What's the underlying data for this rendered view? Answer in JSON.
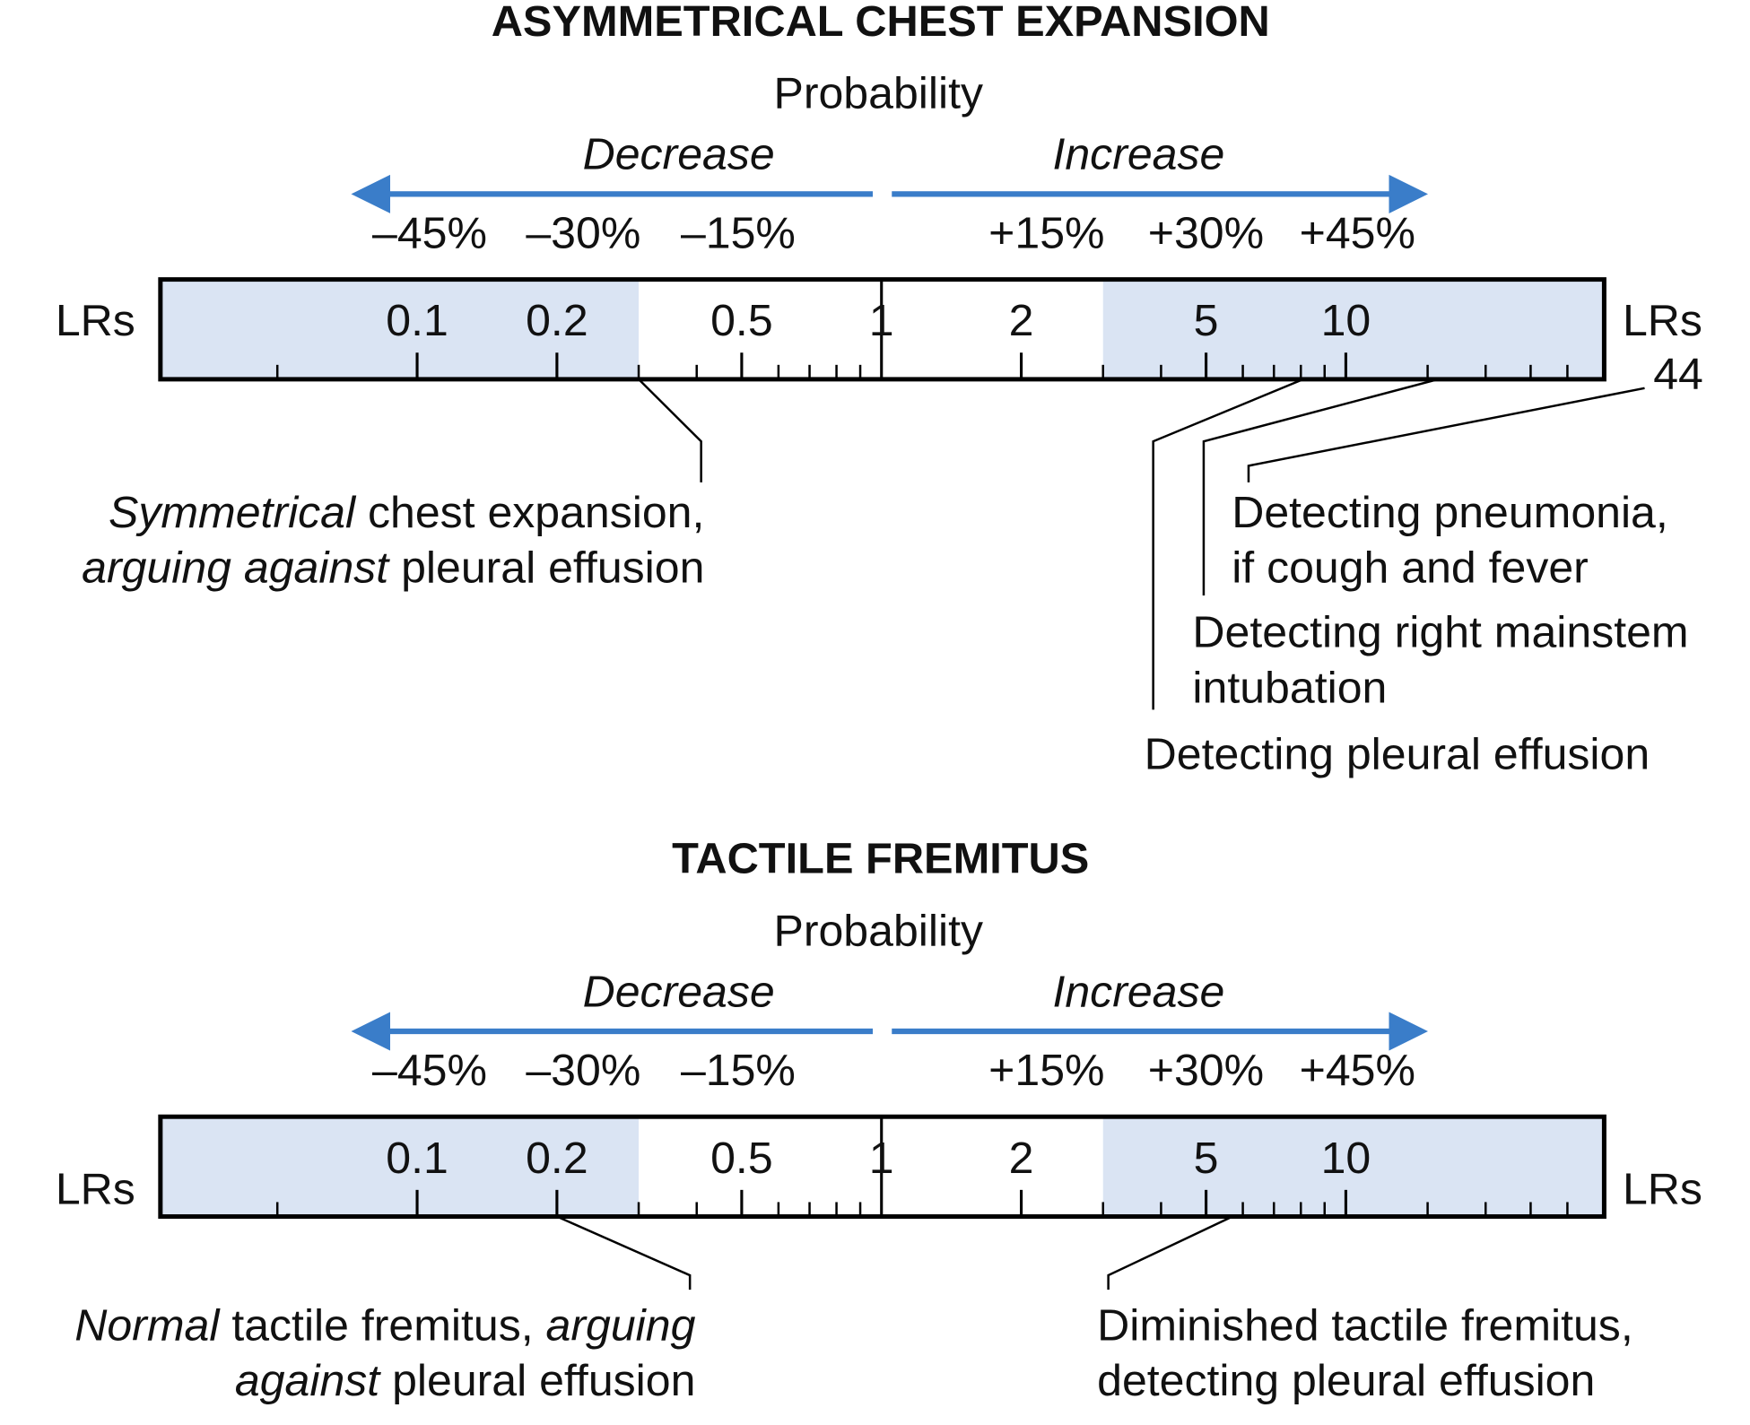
{
  "panels": [
    {
      "title": "ASYMMETRICAL CHEST EXPANSION",
      "probability": "Probability",
      "decrease": "Decrease",
      "increase": "Increase",
      "percent_labels": [
        "–45%",
        "–30%",
        "–15%",
        "+15%",
        "+30%",
        "+45%"
      ],
      "axis_label": "LRs",
      "scale": {
        "log": true,
        "xlim": [
          0.028,
          36
        ],
        "xticks": [
          0.1,
          0.2,
          0.5,
          1,
          2,
          5,
          10
        ],
        "xminor": [
          0.05,
          0.3,
          0.4,
          0.6,
          0.7,
          0.8,
          0.9,
          3,
          4,
          6,
          7,
          8,
          9,
          15,
          20,
          25,
          30
        ],
        "shade_below": 0.3,
        "shade_above": 3,
        "shade_color": "#dae4f3"
      },
      "findings": [
        {
          "lines": [
            [
              {
                "text": "Symmetrical",
                "italic": true
              },
              {
                "text": " chest expansion,"
              }
            ],
            [
              {
                "text": "arguing against",
                "italic": true
              },
              {
                "text": " pleural effusion"
              }
            ]
          ],
          "lr": 0.3
        },
        {
          "lines": [
            [
              {
                "text": "Detecting pleural effusion"
              }
            ]
          ],
          "lr": 8.1
        },
        {
          "lines": [
            [
              {
                "text": "Detecting right mainstem"
              }
            ],
            [
              {
                "text": "intubation"
              }
            ]
          ],
          "lr": 15.8
        },
        {
          "lines": [
            [
              {
                "text": "Detecting pneumonia,"
              }
            ],
            [
              {
                "text": "if cough and fever"
              }
            ]
          ],
          "lr": 44,
          "lr_label": "44"
        }
      ]
    },
    {
      "title": "TACTILE FREMITUS",
      "probability": "Probability",
      "decrease": "Decrease",
      "increase": "Increase",
      "percent_labels": [
        "–45%",
        "–30%",
        "–15%",
        "+15%",
        "+30%",
        "+45%"
      ],
      "axis_label": "LRs",
      "scale": {
        "log": true,
        "xlim": [
          0.028,
          36
        ],
        "xticks": [
          0.1,
          0.2,
          0.5,
          1,
          2,
          5,
          10
        ],
        "xminor": [
          0.05,
          0.3,
          0.4,
          0.6,
          0.7,
          0.8,
          0.9,
          3,
          4,
          6,
          7,
          8,
          9,
          15,
          20,
          25,
          30
        ],
        "shade_below": 0.3,
        "shade_above": 3,
        "shade_color": "#dae4f3"
      },
      "findings": [
        {
          "lines": [
            [
              {
                "text": "Normal",
                "italic": true
              },
              {
                "text": " tactile fremitus, "
              },
              {
                "text": "arguing",
                "italic": true
              }
            ],
            [
              {
                "text": "against",
                "italic": true
              },
              {
                "text": " pleural effusion"
              }
            ]
          ],
          "lr": 0.2
        },
        {
          "lines": [
            [
              {
                "text": "Diminished tactile fremitus,"
              }
            ],
            [
              {
                "text": "detecting pleural effusion"
              }
            ]
          ],
          "lr": 5.7
        }
      ]
    }
  ]
}
